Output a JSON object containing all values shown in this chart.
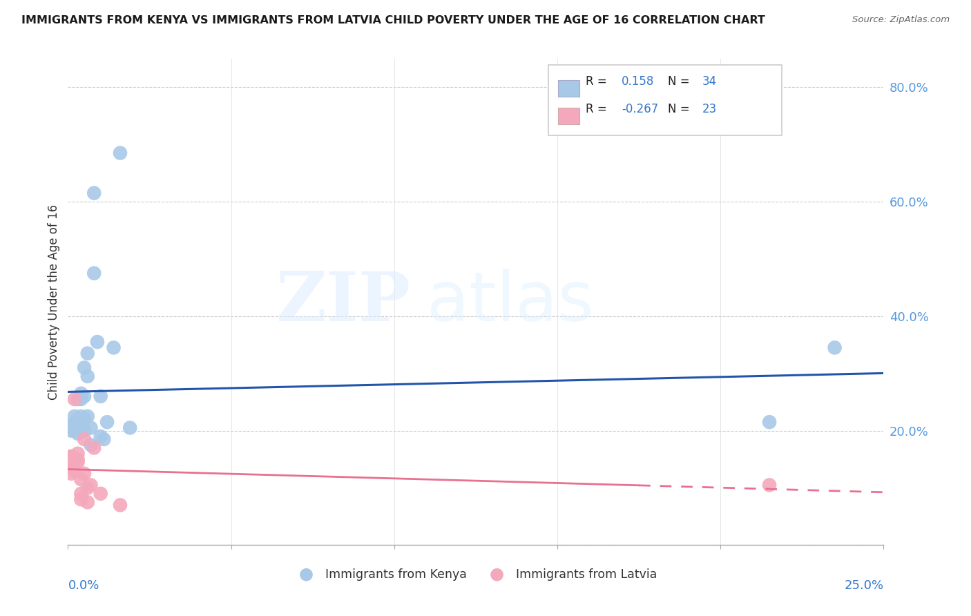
{
  "title": "IMMIGRANTS FROM KENYA VS IMMIGRANTS FROM LATVIA CHILD POVERTY UNDER THE AGE OF 16 CORRELATION CHART",
  "source": "Source: ZipAtlas.com",
  "ylabel": "Child Poverty Under the Age of 16",
  "kenya_R": 0.158,
  "kenya_N": 34,
  "latvia_R": -0.267,
  "latvia_N": 23,
  "kenya_color": "#a8c8e8",
  "latvia_color": "#f4a8bc",
  "kenya_line_color": "#2255aa",
  "latvia_line_color": "#e87090",
  "kenya_x": [
    0.001,
    0.001,
    0.002,
    0.002,
    0.002,
    0.003,
    0.003,
    0.003,
    0.003,
    0.004,
    0.004,
    0.004,
    0.004,
    0.005,
    0.005,
    0.005,
    0.005,
    0.006,
    0.006,
    0.006,
    0.007,
    0.007,
    0.008,
    0.008,
    0.009,
    0.01,
    0.01,
    0.011,
    0.012,
    0.014,
    0.016,
    0.019,
    0.215,
    0.235
  ],
  "kenya_y": [
    0.21,
    0.2,
    0.225,
    0.21,
    0.2,
    0.255,
    0.22,
    0.21,
    0.195,
    0.265,
    0.255,
    0.225,
    0.205,
    0.31,
    0.26,
    0.22,
    0.2,
    0.335,
    0.295,
    0.225,
    0.205,
    0.175,
    0.475,
    0.615,
    0.355,
    0.26,
    0.19,
    0.185,
    0.215,
    0.345,
    0.685,
    0.205,
    0.215,
    0.345
  ],
  "latvia_x": [
    0.001,
    0.001,
    0.001,
    0.001,
    0.002,
    0.002,
    0.002,
    0.002,
    0.003,
    0.003,
    0.003,
    0.004,
    0.004,
    0.004,
    0.005,
    0.005,
    0.006,
    0.006,
    0.007,
    0.008,
    0.01,
    0.016,
    0.215
  ],
  "latvia_y": [
    0.155,
    0.155,
    0.135,
    0.125,
    0.255,
    0.145,
    0.135,
    0.13,
    0.16,
    0.15,
    0.145,
    0.115,
    0.09,
    0.08,
    0.185,
    0.125,
    0.1,
    0.075,
    0.105,
    0.17,
    0.09,
    0.07,
    0.105
  ],
  "xlim": [
    0.0,
    0.25
  ],
  "ylim": [
    0.0,
    0.85
  ],
  "ytick_positions": [
    0.0,
    0.2,
    0.4,
    0.6,
    0.8
  ],
  "yticklabels_right": [
    "",
    "20.0%",
    "40.0%",
    "60.0%",
    "80.0%"
  ]
}
